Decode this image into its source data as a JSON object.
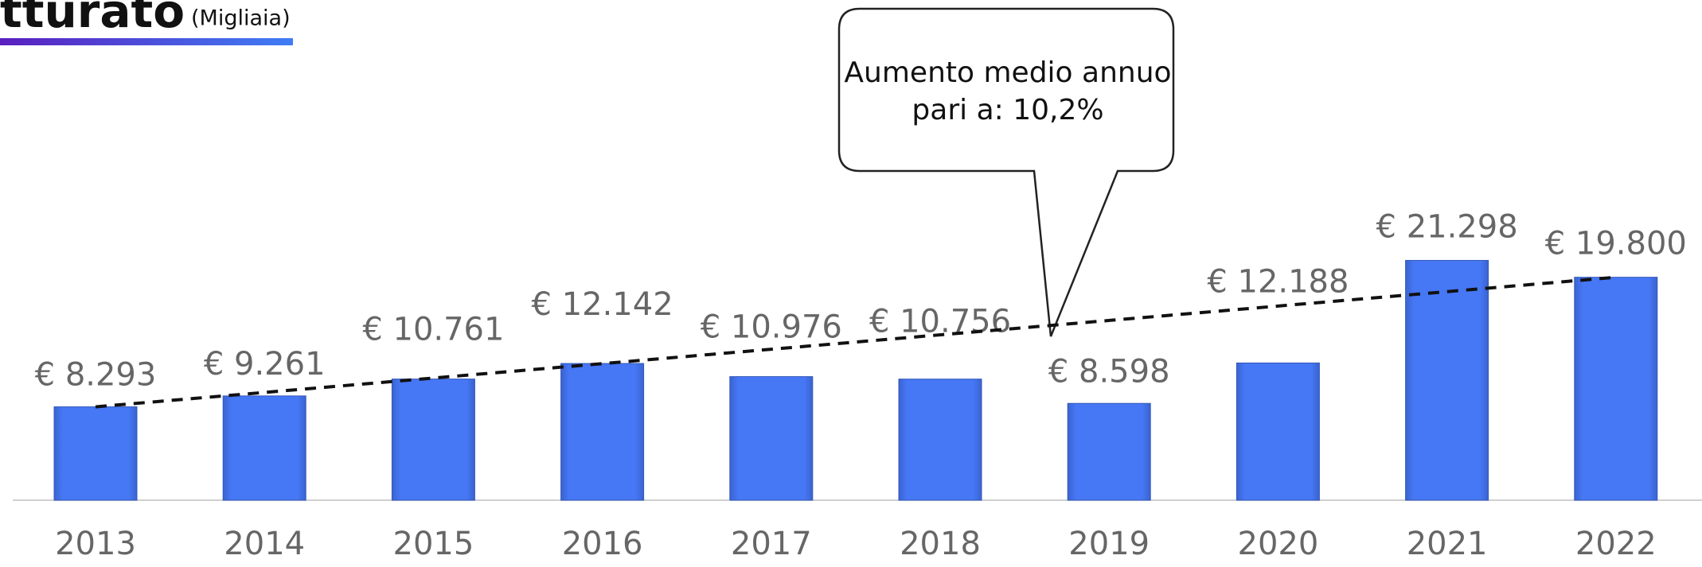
{
  "chart_data": {
    "type": "bar",
    "title": "tturato",
    "subtitle": "(Migliaia)",
    "annotation_lines": [
      "Aumento medio annuo",
      "pari a: 10,2%"
    ],
    "categories": [
      "2013",
      "2014",
      "2015",
      "2016",
      "2017",
      "2018",
      "2019",
      "2020",
      "2021",
      "2022"
    ],
    "values": [
      8293,
      9261,
      10761,
      12142,
      10976,
      10756,
      8598,
      12188,
      21298,
      19800
    ],
    "value_labels": [
      "€ 8.293",
      "€ 9.261",
      "€ 10.761",
      "€ 12.142",
      "€ 10.976",
      "€ 10.756",
      "€ 8.598",
      "€ 12.188",
      "€ 21.298",
      "€ 19.800"
    ],
    "color": "#4677f5",
    "ylim": [
      0,
      44000
    ],
    "trendline": true
  }
}
